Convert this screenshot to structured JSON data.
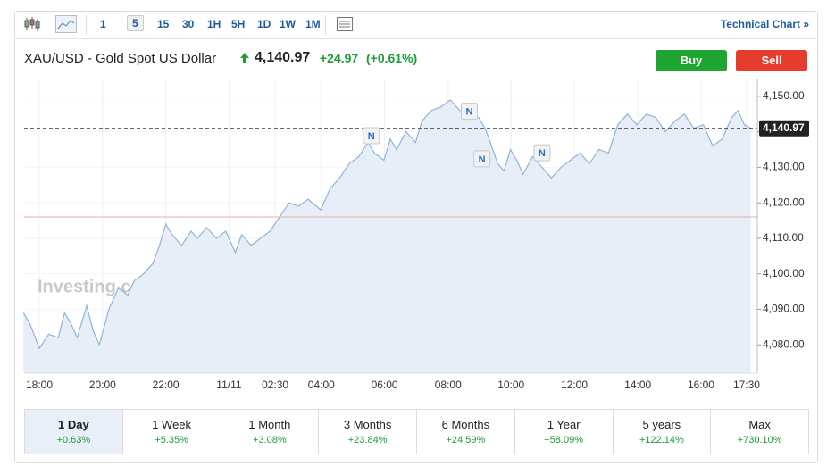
{
  "toolbar": {
    "intervals": [
      "1",
      "5",
      "15",
      "30",
      "1H",
      "5H",
      "1D",
      "1W",
      "1M"
    ],
    "selected_interval": "5",
    "link": "Technical Chart »"
  },
  "header": {
    "title": "XAU/USD - Gold Spot US Dollar",
    "price": "4,140.97",
    "change": "+24.97",
    "change_pct": "(+0.61%)",
    "buy": "Buy",
    "sell": "Sell"
  },
  "chart_data": {
    "type": "line",
    "watermark": "Investing.com",
    "color": "#8fb4d8",
    "fill": "#e7eef7",
    "grid": true,
    "x": [
      -0.5,
      -0.3,
      0,
      0.3,
      0.6,
      0.8,
      1.0,
      1.2,
      1.5,
      1.7,
      1.9,
      2.2,
      2.5,
      2.8,
      3.0,
      3.3,
      3.6,
      3.8,
      4.0,
      4.2,
      4.5,
      4.8,
      5.0,
      5.3,
      5.6,
      5.9,
      6.2,
      6.4,
      6.7,
      7.0,
      7.3,
      7.6,
      7.9,
      8.2,
      8.5,
      8.9,
      9.2,
      9.5,
      9.8,
      10.1,
      10.4,
      10.6,
      10.9,
      11.1,
      11.3,
      11.6,
      11.9,
      12.1,
      12.4,
      12.7,
      13.0,
      13.3,
      13.6,
      13.9,
      14.1,
      14.3,
      14.5,
      14.7,
      14.9,
      15.1,
      15.3,
      15.6,
      15.9,
      16.2,
      16.5,
      16.8,
      17.1,
      17.4,
      17.7,
      18.0,
      18.3,
      18.6,
      18.9,
      19.2,
      19.5,
      19.8,
      20.1,
      20.4,
      20.7,
      21.0,
      21.3,
      21.6,
      21.9,
      22.1,
      22.3,
      22.5
    ],
    "values": [
      4089,
      4086,
      4079,
      4083,
      4082,
      4089,
      4086,
      4082,
      4091,
      4084,
      4080,
      4090,
      4096,
      4094,
      4098,
      4100,
      4103,
      4108,
      4114,
      4111,
      4108,
      4112,
      4110,
      4113,
      4110,
      4112,
      4106,
      4111,
      4108,
      4110,
      4112,
      4116,
      4120,
      4119,
      4121,
      4118,
      4124,
      4127,
      4131,
      4133,
      4137,
      4134,
      4132,
      4138,
      4135,
      4140,
      4137,
      4143,
      4146,
      4147,
      4149,
      4146,
      4145,
      4144,
      4141,
      4136,
      4131,
      4129,
      4135,
      4132,
      4128,
      4133,
      4130,
      4127,
      4130,
      4132,
      4134,
      4131,
      4135,
      4134,
      4142,
      4145,
      4142,
      4145,
      4144,
      4140,
      4143,
      4145,
      4141,
      4142,
      4136,
      4138,
      4144,
      4146,
      4142,
      4141
    ],
    "xlim": [
      -0.48,
      22.71
    ],
    "ylim": [
      4072,
      4155
    ],
    "xticks": [
      {
        "value": 0,
        "label": "18:00"
      },
      {
        "value": 2,
        "label": "20:00"
      },
      {
        "value": 4,
        "label": "22:00"
      },
      {
        "value": 6,
        "label": "11/11"
      },
      {
        "value": 7.46,
        "label": "02:30"
      },
      {
        "value": 8.92,
        "label": "04:00"
      },
      {
        "value": 10.92,
        "label": "06:00"
      },
      {
        "value": 12.93,
        "label": "08:00"
      },
      {
        "value": 14.92,
        "label": "10:00"
      },
      {
        "value": 16.92,
        "label": "12:00"
      },
      {
        "value": 18.93,
        "label": "14:00"
      },
      {
        "value": 20.93,
        "label": "16:00"
      },
      {
        "value": 22.37,
        "label": "17:30"
      }
    ],
    "yticks": [
      {
        "value": 4080,
        "label": "4,080.00"
      },
      {
        "value": 4090,
        "label": "4,090.00"
      },
      {
        "value": 4100,
        "label": "4,100.00"
      },
      {
        "value": 4110,
        "label": "4,110.00"
      },
      {
        "value": 4120,
        "label": "4,120.00"
      },
      {
        "value": 4130,
        "label": "4,130.00"
      },
      {
        "value": 4140,
        "label": "4,140.00"
      },
      {
        "value": 4150,
        "label": "4,150.00"
      }
    ],
    "last_value": {
      "value": 4140.97,
      "label": "4,140.97"
    },
    "prev_close": 4116,
    "annotations": [
      {
        "x": 10.5,
        "y": 4138.9,
        "label": "N"
      },
      {
        "x": 13.6,
        "y": 4145.8,
        "label": "N"
      },
      {
        "x": 14.0,
        "y": 4132.4,
        "label": "N"
      },
      {
        "x": 15.9,
        "y": 4134.1,
        "label": "N"
      }
    ]
  },
  "periods": [
    {
      "label": "1 Day",
      "change": "+0.63%"
    },
    {
      "label": "1 Week",
      "change": "+5.35%"
    },
    {
      "label": "1 Month",
      "change": "+3.08%"
    },
    {
      "label": "3 Months",
      "change": "+23.84%"
    },
    {
      "label": "6 Months",
      "change": "+24.59%"
    },
    {
      "label": "1 Year",
      "change": "+58.09%"
    },
    {
      "label": "5 years",
      "change": "+122.14%"
    },
    {
      "label": "Max",
      "change": "+730.10%"
    }
  ]
}
